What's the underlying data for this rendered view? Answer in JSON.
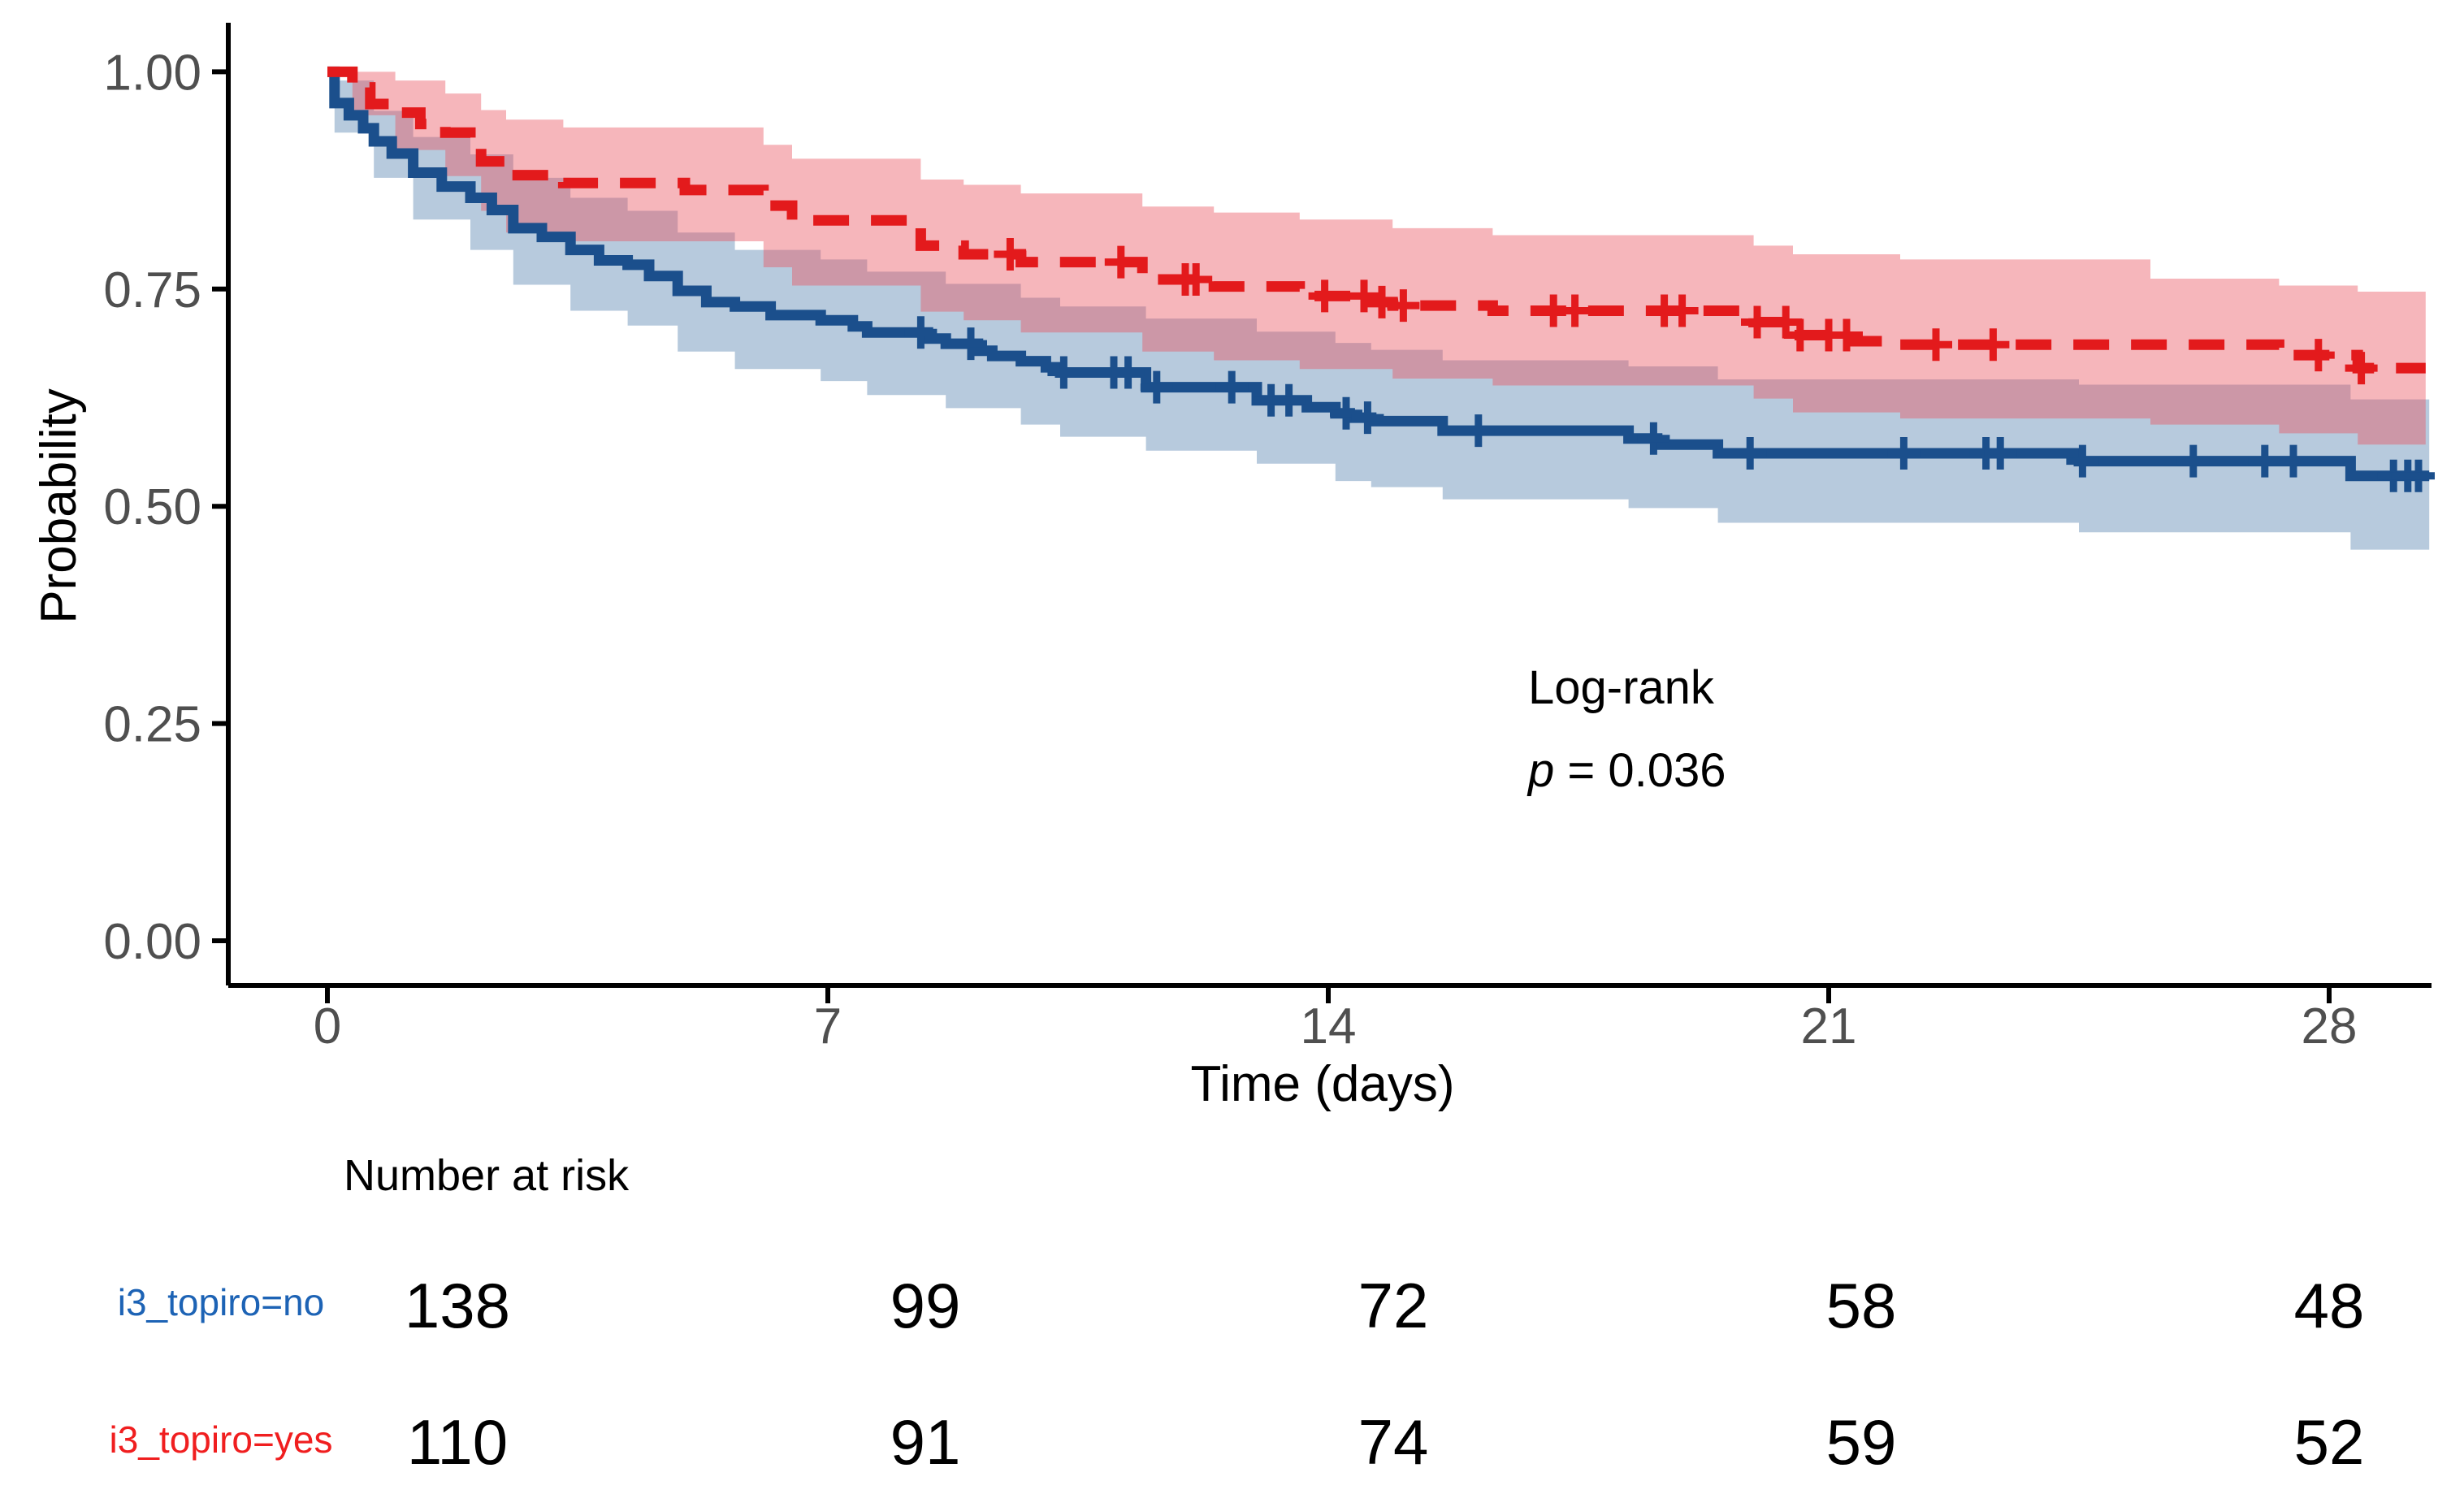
{
  "chart_data": {
    "type": "line",
    "subtype": "kaplan-meier-survival",
    "title": "",
    "xlabel": "Time (days)",
    "ylabel": "Probability",
    "xlim": [
      0,
      29.4
    ],
    "ylim": [
      0,
      1
    ],
    "grid": false,
    "legend_position": "none",
    "background": "#ffffff",
    "axis_color": "#000000",
    "tick_label_color": "#4f4f4f",
    "x_ticks": [
      {
        "value": 0,
        "label": "0"
      },
      {
        "value": 7,
        "label": "7"
      },
      {
        "value": 14,
        "label": "14"
      },
      {
        "value": 21,
        "label": "21"
      },
      {
        "value": 28,
        "label": "28"
      }
    ],
    "y_ticks": [
      {
        "value": 0.0,
        "label": "0.00"
      },
      {
        "value": 0.25,
        "label": "0.25"
      },
      {
        "value": 0.5,
        "label": "0.50"
      },
      {
        "value": 0.75,
        "label": "0.75"
      },
      {
        "value": 1.0,
        "label": "1.00"
      }
    ],
    "annotation": {
      "line1": "Log-rank",
      "p_symbol": "p",
      "p_rest": " = 0.036"
    },
    "series": [
      {
        "name": "i3_topiro=no",
        "color": "#1b4f8c",
        "label_color": "#1d63b5",
        "band_color": "#b7cadd",
        "linestyle": "solid",
        "steps": [
          [
            0,
            1.0
          ],
          [
            0.1,
            0.964
          ],
          [
            0.3,
            0.95
          ],
          [
            0.5,
            0.935
          ],
          [
            0.65,
            0.92
          ],
          [
            0.9,
            0.906
          ],
          [
            1.2,
            0.884
          ],
          [
            1.6,
            0.868
          ],
          [
            2.0,
            0.855
          ],
          [
            2.3,
            0.841
          ],
          [
            2.6,
            0.82
          ],
          [
            3.0,
            0.81
          ],
          [
            3.4,
            0.795
          ],
          [
            3.8,
            0.783
          ],
          [
            4.2,
            0.778
          ],
          [
            4.5,
            0.765
          ],
          [
            4.9,
            0.748
          ],
          [
            5.3,
            0.735
          ],
          [
            5.7,
            0.73
          ],
          [
            6.2,
            0.72
          ],
          [
            6.9,
            0.714
          ],
          [
            7.35,
            0.707
          ],
          [
            7.55,
            0.7
          ],
          [
            8.4,
            0.693
          ],
          [
            8.65,
            0.687
          ],
          [
            9.1,
            0.679
          ],
          [
            9.3,
            0.673
          ],
          [
            9.7,
            0.667
          ],
          [
            10.05,
            0.66
          ],
          [
            10.25,
            0.654
          ],
          [
            11.45,
            0.637
          ],
          [
            13.0,
            0.622
          ],
          [
            13.7,
            0.614
          ],
          [
            14.1,
            0.607
          ],
          [
            14.3,
            0.602
          ],
          [
            14.6,
            0.598
          ],
          [
            15.6,
            0.587
          ],
          [
            18.2,
            0.578
          ],
          [
            18.6,
            0.571
          ],
          [
            19.45,
            0.561
          ],
          [
            24.5,
            0.552
          ],
          [
            28.3,
            0.535
          ]
        ],
        "end_time": 29.4,
        "ci": [
          [
            0,
            0.995,
            1.0
          ],
          [
            0.1,
            0.93,
            0.99
          ],
          [
            0.65,
            0.878,
            0.955
          ],
          [
            1.2,
            0.83,
            0.925
          ],
          [
            2.0,
            0.795,
            0.905
          ],
          [
            2.6,
            0.755,
            0.878
          ],
          [
            3.4,
            0.725,
            0.855
          ],
          [
            4.2,
            0.708,
            0.84
          ],
          [
            4.9,
            0.678,
            0.815
          ],
          [
            5.7,
            0.658,
            0.795
          ],
          [
            6.9,
            0.644,
            0.784
          ],
          [
            7.55,
            0.628,
            0.77
          ],
          [
            8.65,
            0.613,
            0.756
          ],
          [
            9.7,
            0.594,
            0.74
          ],
          [
            10.25,
            0.58,
            0.73
          ],
          [
            11.45,
            0.564,
            0.716
          ],
          [
            13.0,
            0.549,
            0.701
          ],
          [
            14.1,
            0.529,
            0.688
          ],
          [
            14.6,
            0.522,
            0.68
          ],
          [
            15.6,
            0.508,
            0.668
          ],
          [
            18.2,
            0.498,
            0.661
          ],
          [
            19.45,
            0.481,
            0.646
          ],
          [
            24.5,
            0.47,
            0.64
          ],
          [
            28.3,
            0.45,
            0.623
          ]
        ],
        "censor_times": [
          8.3,
          9.0,
          10.3,
          11.0,
          11.2,
          11.6,
          12.65,
          13.2,
          13.45,
          14.25,
          14.55,
          16.1,
          18.55,
          19.9,
          22.05,
          23.2,
          23.4,
          24.55,
          26.1,
          27.1,
          27.5,
          28.9,
          29.1,
          29.25
        ]
      },
      {
        "name": "i3_topiro=yes",
        "color": "#e31a1c",
        "label_color": "#f01e1f",
        "band_color": "rgba(233,82,92,0.42)",
        "linestyle": "dashed",
        "steps": [
          [
            0,
            1.0
          ],
          [
            0.35,
            0.982
          ],
          [
            0.6,
            0.963
          ],
          [
            0.95,
            0.953
          ],
          [
            1.3,
            0.94
          ],
          [
            1.65,
            0.93
          ],
          [
            2.0,
            0.918
          ],
          [
            2.15,
            0.897
          ],
          [
            2.5,
            0.881
          ],
          [
            3.3,
            0.872
          ],
          [
            5.0,
            0.864
          ],
          [
            6.1,
            0.846
          ],
          [
            6.5,
            0.829
          ],
          [
            8.3,
            0.8
          ],
          [
            8.9,
            0.79
          ],
          [
            9.7,
            0.781
          ],
          [
            11.4,
            0.761
          ],
          [
            12.4,
            0.753
          ],
          [
            13.6,
            0.742
          ],
          [
            14.55,
            0.735
          ],
          [
            14.9,
            0.731
          ],
          [
            16.3,
            0.725
          ],
          [
            19.95,
            0.712
          ],
          [
            20.5,
            0.697
          ],
          [
            21.3,
            0.69
          ],
          [
            22.0,
            0.686
          ],
          [
            27.3,
            0.674
          ],
          [
            28.4,
            0.659
          ]
        ],
        "end_time": 29.35,
        "ci": [
          [
            0,
            1.0,
            1.0
          ],
          [
            0.35,
            0.95,
            1.0
          ],
          [
            0.95,
            0.91,
            0.99
          ],
          [
            1.65,
            0.88,
            0.975
          ],
          [
            2.15,
            0.84,
            0.956
          ],
          [
            2.5,
            0.815,
            0.945
          ],
          [
            3.3,
            0.805,
            0.936
          ],
          [
            6.1,
            0.775,
            0.916
          ],
          [
            6.5,
            0.754,
            0.9
          ],
          [
            8.3,
            0.724,
            0.876
          ],
          [
            8.9,
            0.714,
            0.87
          ],
          [
            9.7,
            0.7,
            0.86
          ],
          [
            11.4,
            0.678,
            0.845
          ],
          [
            12.4,
            0.668,
            0.838
          ],
          [
            13.6,
            0.658,
            0.83
          ],
          [
            14.9,
            0.647,
            0.82
          ],
          [
            16.3,
            0.639,
            0.812
          ],
          [
            19.95,
            0.624,
            0.8
          ],
          [
            20.5,
            0.608,
            0.79
          ],
          [
            22.0,
            0.601,
            0.784
          ],
          [
            25.5,
            0.594,
            0.762
          ],
          [
            27.3,
            0.584,
            0.754
          ],
          [
            28.4,
            0.571,
            0.747
          ]
        ],
        "censor_times": [
          9.55,
          11.1,
          12.0,
          12.15,
          13.95,
          14.5,
          14.75,
          15.05,
          17.15,
          17.45,
          18.7,
          18.95,
          20.0,
          20.4,
          20.6,
          21.0,
          21.25,
          22.5,
          23.3,
          27.85,
          28.45
        ]
      }
    ],
    "risk_table": {
      "title": "Number at risk",
      "times": [
        0,
        7,
        14,
        21,
        28
      ],
      "rows": [
        {
          "label": "i3_topiro=no",
          "counts": [
            "138",
            "99",
            "72",
            "58",
            "48"
          ]
        },
        {
          "label": "i3_topiro=yes",
          "counts": [
            "110",
            "91",
            "74",
            "59",
            "52"
          ]
        }
      ]
    }
  }
}
